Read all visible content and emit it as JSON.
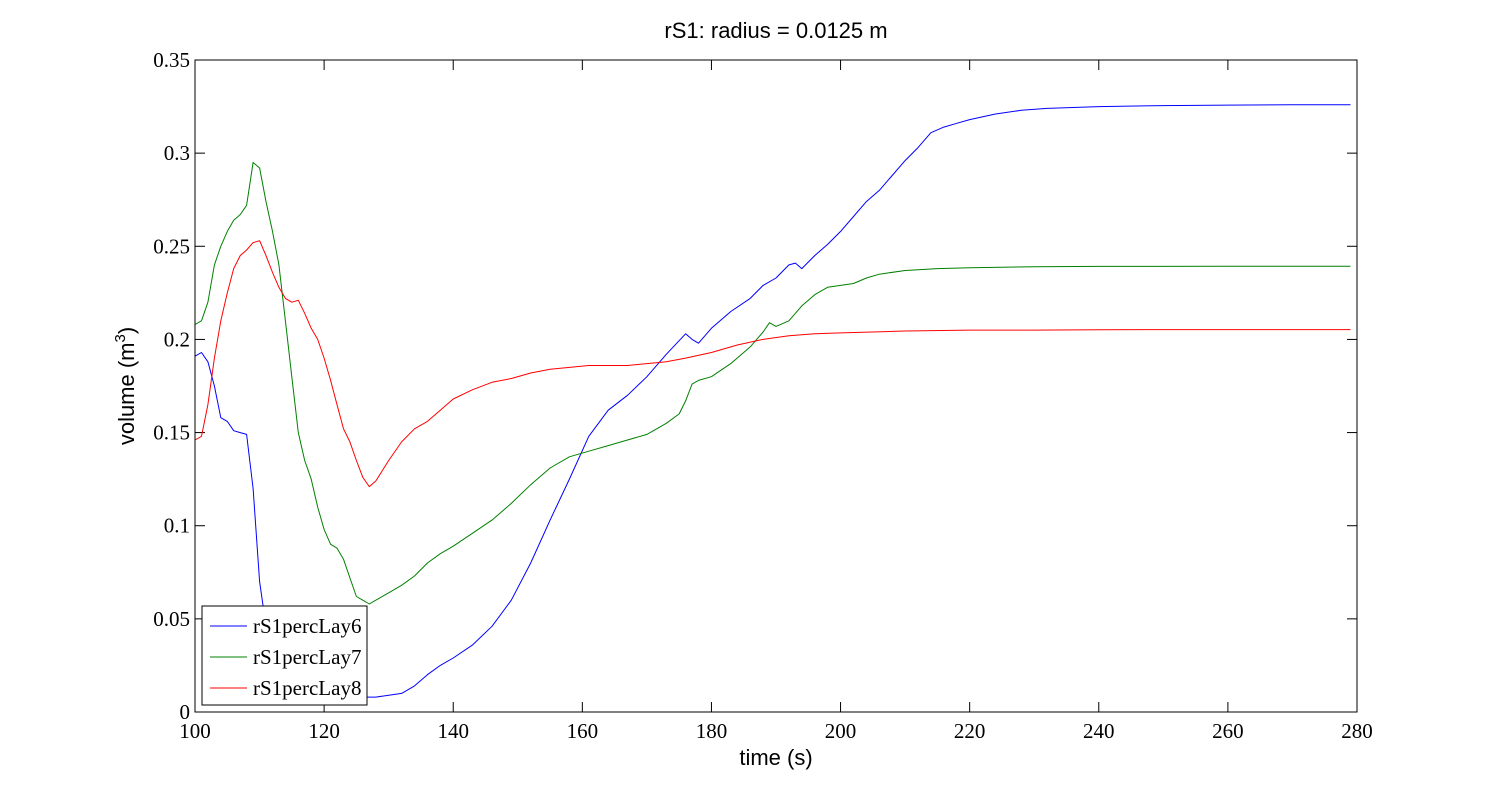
{
  "chart_data": {
    "type": "line",
    "title": "rS1: radius = 0.0125 m",
    "xlabel": "time (s)",
    "ylabel": "volume (m",
    "ylabel_superscript": "3",
    "ylabel_suffix": ")",
    "xlim": [
      100,
      280
    ],
    "ylim": [
      0,
      0.35
    ],
    "xticks": [
      100,
      120,
      140,
      160,
      180,
      200,
      220,
      240,
      260,
      280
    ],
    "yticks": [
      0,
      0.05,
      0.1,
      0.15,
      0.2,
      0.25,
      0.3,
      0.35
    ],
    "xtick_labels": [
      "100",
      "120",
      "140",
      "160",
      "180",
      "200",
      "220",
      "240",
      "260",
      "280"
    ],
    "ytick_labels": [
      "0",
      "0.05",
      "0.1",
      "0.15",
      "0.2",
      "0.25",
      "0.3",
      "0.35"
    ],
    "grid": false,
    "legend_position": "bottom-left",
    "series": [
      {
        "name": "rS1percLay6",
        "color": "#0000ff",
        "x": [
          100,
          101,
          102,
          103,
          104,
          105,
          106,
          107,
          108,
          109,
          110,
          111,
          112,
          113,
          114,
          115,
          116,
          118,
          120,
          122,
          125,
          128,
          130,
          132,
          134,
          136,
          138,
          140,
          143,
          146,
          149,
          152,
          155,
          158,
          161,
          164,
          167,
          170,
          173,
          176,
          177,
          178,
          180,
          183,
          186,
          188,
          190,
          192,
          193,
          194,
          196,
          198,
          200,
          202,
          204,
          206,
          208,
          210,
          212,
          214,
          216,
          218,
          220,
          224,
          228,
          232,
          240,
          250,
          260,
          270,
          279
        ],
        "y": [
          0.191,
          0.193,
          0.188,
          0.175,
          0.158,
          0.156,
          0.151,
          0.15,
          0.149,
          0.12,
          0.07,
          0.046,
          0.04,
          0.03,
          0.022,
          0.018,
          0.015,
          0.012,
          0.01,
          0.009,
          0.008,
          0.008,
          0.009,
          0.01,
          0.014,
          0.02,
          0.025,
          0.029,
          0.036,
          0.046,
          0.06,
          0.08,
          0.103,
          0.125,
          0.148,
          0.162,
          0.17,
          0.18,
          0.192,
          0.203,
          0.2,
          0.198,
          0.206,
          0.215,
          0.222,
          0.229,
          0.233,
          0.24,
          0.241,
          0.238,
          0.245,
          0.251,
          0.258,
          0.266,
          0.274,
          0.28,
          0.288,
          0.296,
          0.303,
          0.311,
          0.314,
          0.316,
          0.318,
          0.321,
          0.323,
          0.324,
          0.325,
          0.3255,
          0.3258,
          0.326,
          0.326
        ]
      },
      {
        "name": "rS1percLay7",
        "color": "#008000",
        "x": [
          100,
          101,
          102,
          103,
          104,
          105,
          106,
          107,
          108,
          109,
          110,
          111,
          112,
          113,
          114,
          115,
          116,
          117,
          118,
          119,
          120,
          121,
          122,
          123,
          124,
          125,
          126,
          127,
          128,
          130,
          132,
          134,
          136,
          138,
          140,
          143,
          146,
          149,
          152,
          155,
          158,
          161,
          164,
          167,
          170,
          173,
          175,
          176,
          177,
          178,
          180,
          183,
          186,
          188,
          189,
          190,
          192,
          194,
          196,
          198,
          200,
          202,
          204,
          206,
          210,
          215,
          220,
          230,
          240,
          260,
          279
        ],
        "y": [
          0.208,
          0.21,
          0.22,
          0.24,
          0.25,
          0.258,
          0.264,
          0.267,
          0.272,
          0.295,
          0.292,
          0.274,
          0.258,
          0.24,
          0.21,
          0.18,
          0.15,
          0.135,
          0.125,
          0.11,
          0.098,
          0.09,
          0.088,
          0.082,
          0.072,
          0.062,
          0.06,
          0.058,
          0.06,
          0.064,
          0.068,
          0.073,
          0.08,
          0.085,
          0.089,
          0.096,
          0.103,
          0.112,
          0.122,
          0.131,
          0.137,
          0.14,
          0.143,
          0.146,
          0.149,
          0.155,
          0.16,
          0.167,
          0.176,
          0.178,
          0.18,
          0.187,
          0.196,
          0.204,
          0.209,
          0.207,
          0.21,
          0.218,
          0.224,
          0.228,
          0.229,
          0.23,
          0.233,
          0.235,
          0.237,
          0.238,
          0.2385,
          0.239,
          0.2392,
          0.2393,
          0.2393
        ]
      },
      {
        "name": "rS1percLay8",
        "color": "#ff0000",
        "x": [
          100,
          101,
          102,
          103,
          104,
          105,
          106,
          107,
          108,
          109,
          110,
          111,
          112,
          113,
          114,
          115,
          116,
          117,
          118,
          119,
          120,
          121,
          122,
          123,
          124,
          125,
          126,
          127,
          128,
          130,
          132,
          134,
          136,
          138,
          140,
          143,
          146,
          149,
          152,
          155,
          158,
          161,
          164,
          167,
          170,
          173,
          176,
          180,
          184,
          188,
          192,
          196,
          200,
          205,
          210,
          220,
          230,
          240,
          260,
          279
        ],
        "y": [
          0.146,
          0.148,
          0.165,
          0.19,
          0.21,
          0.225,
          0.238,
          0.245,
          0.248,
          0.252,
          0.253,
          0.245,
          0.236,
          0.228,
          0.222,
          0.22,
          0.221,
          0.214,
          0.206,
          0.2,
          0.19,
          0.178,
          0.165,
          0.152,
          0.145,
          0.135,
          0.126,
          0.121,
          0.124,
          0.135,
          0.145,
          0.152,
          0.156,
          0.162,
          0.168,
          0.173,
          0.177,
          0.179,
          0.182,
          0.184,
          0.185,
          0.186,
          0.186,
          0.186,
          0.187,
          0.188,
          0.19,
          0.193,
          0.197,
          0.2,
          0.202,
          0.203,
          0.2035,
          0.204,
          0.2045,
          0.205,
          0.205,
          0.2052,
          0.2053,
          0.2053
        ]
      }
    ]
  }
}
